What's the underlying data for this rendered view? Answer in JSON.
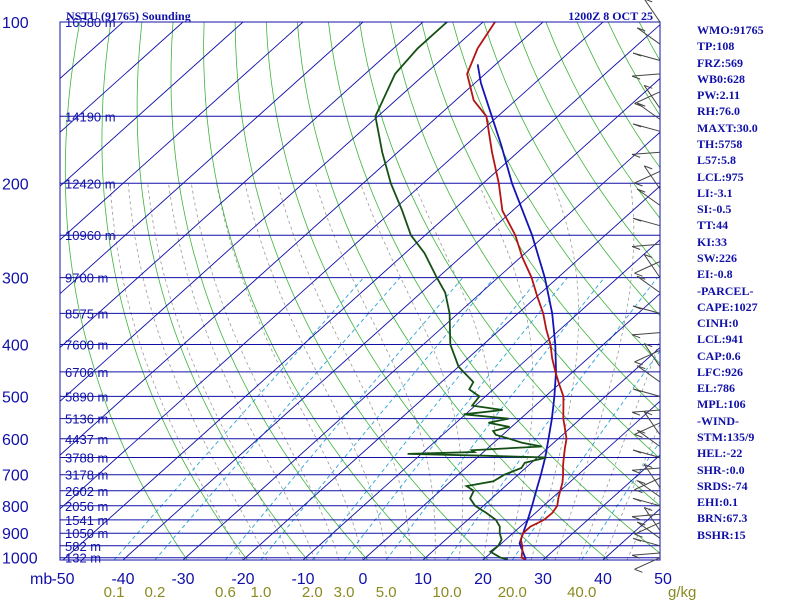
{
  "chart_data": {
    "type": "skew-t",
    "title": "NSTU (91765) Sounding",
    "time": "1200Z  8 OCT 25",
    "pressure_unit": "mb",
    "mixing_ratio_unit": "g/kg",
    "pressure_labels": [
      "100",
      "200",
      "300",
      "400",
      "500",
      "600",
      "700",
      "800",
      "900",
      "1000"
    ],
    "height_levels": [
      {
        "p": 100,
        "label": "16580 m"
      },
      {
        "p": 150,
        "label": "14190 m"
      },
      {
        "p": 200,
        "label": "12420 m"
      },
      {
        "p": 250,
        "label": "10960 m"
      },
      {
        "p": 300,
        "label": "9700 m"
      },
      {
        "p": 350,
        "label": "8575 m"
      },
      {
        "p": 400,
        "label": "7600 m"
      },
      {
        "p": 450,
        "label": "6706 m"
      },
      {
        "p": 500,
        "label": "5890 m"
      },
      {
        "p": 550,
        "label": "5136 m"
      },
      {
        "p": 600,
        "label": "4437 m"
      },
      {
        "p": 650,
        "label": "3788 m"
      },
      {
        "p": 700,
        "label": "3178 m"
      },
      {
        "p": 750,
        "label": "2602 m"
      },
      {
        "p": 800,
        "label": "2056 m"
      },
      {
        "p": 850,
        "label": "1541 m"
      },
      {
        "p": 900,
        "label": "1050 m"
      },
      {
        "p": 950,
        "label": "582 m"
      },
      {
        "p": 1000,
        "label": "132 m"
      }
    ],
    "temp_ticks": [
      "-50",
      "-40",
      "-30",
      "-20",
      "-10",
      "0",
      "10",
      "20",
      "30",
      "40",
      "50"
    ],
    "mixing_ratio_ticks": [
      "0.1",
      "0.2",
      "0.6",
      "1.0",
      "2.0",
      "3.0",
      "5.0",
      "10.0",
      "20.0",
      "40.0"
    ],
    "temperature": [
      [
        1007,
        27.0
      ],
      [
        1000,
        26.0
      ],
      [
        970,
        24.8
      ],
      [
        950,
        23.9
      ],
      [
        925,
        22.5
      ],
      [
        900,
        21.7
      ],
      [
        875,
        21.7
      ],
      [
        850,
        22.7
      ],
      [
        825,
        22.8
      ],
      [
        800,
        22.3
      ],
      [
        775,
        21.1
      ],
      [
        750,
        20.0
      ],
      [
        725,
        18.9
      ],
      [
        700,
        17.5
      ],
      [
        675,
        15.9
      ],
      [
        650,
        14.4
      ],
      [
        625,
        12.9
      ],
      [
        600,
        11.4
      ],
      [
        575,
        9.3
      ],
      [
        550,
        7.1
      ],
      [
        525,
        5.1
      ],
      [
        500,
        3.0
      ],
      [
        475,
        0.1
      ],
      [
        450,
        -2.9
      ],
      [
        425,
        -5.9
      ],
      [
        400,
        -8.8
      ],
      [
        375,
        -12.3
      ],
      [
        350,
        -15.8
      ],
      [
        325,
        -20.0
      ],
      [
        300,
        -24.4
      ],
      [
        275,
        -29.7
      ],
      [
        250,
        -35.0
      ],
      [
        225,
        -41.7
      ],
      [
        200,
        -47.4
      ],
      [
        175,
        -54.3
      ],
      [
        150,
        -61.9
      ],
      [
        140,
        -67.0
      ],
      [
        125,
        -73.0
      ],
      [
        112,
        -76.0
      ],
      [
        100,
        -78.0
      ]
    ],
    "dewpoint": [
      [
        1007,
        24.0
      ],
      [
        1000,
        22.5
      ],
      [
        975,
        19.7
      ],
      [
        950,
        19.9
      ],
      [
        925,
        19.3
      ],
      [
        900,
        17.8
      ],
      [
        875,
        16.6
      ],
      [
        850,
        14.7
      ],
      [
        825,
        11.8
      ],
      [
        800,
        8.6
      ],
      [
        775,
        6.4
      ],
      [
        750,
        5.6
      ],
      [
        735,
        3.5
      ],
      [
        720,
        7.1
      ],
      [
        700,
        7.7
      ],
      [
        680,
        9.3
      ],
      [
        665,
        8.9
      ],
      [
        650,
        11.5
      ],
      [
        645,
        0.5
      ],
      [
        640,
        -12.3
      ],
      [
        635,
        -1.5
      ],
      [
        630,
        -2.3
      ],
      [
        620,
        8.7
      ],
      [
        610,
        4.7
      ],
      [
        600,
        1.9
      ],
      [
        590,
        -1.1
      ],
      [
        580,
        -2.3
      ],
      [
        570,
        -0.3
      ],
      [
        560,
        -4.6
      ],
      [
        550,
        -2.0
      ],
      [
        540,
        -10.3
      ],
      [
        530,
        -4.6
      ],
      [
        520,
        -10.5
      ],
      [
        500,
        -11.0
      ],
      [
        485,
        -14.0
      ],
      [
        470,
        -14.7
      ],
      [
        440,
        -20.0
      ],
      [
        400,
        -25.5
      ],
      [
        350,
        -31.4
      ],
      [
        320,
        -36.0
      ],
      [
        300,
        -40.2
      ],
      [
        270,
        -46.8
      ],
      [
        250,
        -52.4
      ],
      [
        225,
        -58.4
      ],
      [
        200,
        -65.4
      ],
      [
        175,
        -72.6
      ],
      [
        150,
        -80.4
      ],
      [
        125,
        -85.0
      ],
      [
        112,
        -86.0
      ],
      [
        100,
        -86.0
      ]
    ],
    "parcel": [
      [
        1007,
        27.0
      ],
      [
        940,
        23.0
      ],
      [
        900,
        21.7
      ],
      [
        850,
        20.0
      ],
      [
        800,
        18.1
      ],
      [
        750,
        16.0
      ],
      [
        700,
        13.8
      ],
      [
        650,
        11.3
      ],
      [
        600,
        8.4
      ],
      [
        550,
        5.2
      ],
      [
        500,
        1.5
      ],
      [
        450,
        -2.8
      ],
      [
        400,
        -8.0
      ],
      [
        350,
        -14.3
      ],
      [
        300,
        -22.2
      ],
      [
        250,
        -32.2
      ],
      [
        200,
        -45.2
      ],
      [
        170,
        -54.0
      ],
      [
        150,
        -61.0
      ],
      [
        130,
        -69.0
      ],
      [
        120,
        -73.0
      ]
    ],
    "wind_levels_mb": [
      100,
      110,
      118,
      125,
      135,
      145,
      152,
      160,
      175,
      190,
      205,
      220,
      240,
      260,
      280,
      300,
      320,
      350,
      380,
      410,
      440,
      470,
      500,
      530,
      560,
      590,
      620,
      650,
      680,
      710,
      740,
      770,
      800,
      830,
      860,
      890,
      920,
      950,
      980,
      1000
    ],
    "indices": [
      "WMO:91765",
      "TP:108",
      "FRZ:569",
      "WB0:628",
      "PW:2.11",
      "RH:76.0",
      "MAXT:30.0",
      "TH:5758",
      "L57:5.8",
      "LCL:975",
      "LI:-3.1",
      "SI:-0.5",
      "TT:44",
      "KI:33",
      "SW:226",
      "EI:-0.8",
      "-PARCEL-",
      "CAPE:1027",
      "CINH:0",
      "LCL:941",
      "CAP:0.6",
      "LFC:926",
      "EL:786",
      "MPL:106",
      "-WIND-",
      "STM:135/9",
      "HEL:-22",
      "SHR-:0.0",
      "SRDS:-74",
      "EHI:0.1",
      "BRN:67.3",
      "BSHR:15"
    ],
    "colors": {
      "isobar": "#1010a8",
      "isotherm": "#1010a8",
      "dry_adiabat": "#3cb43c",
      "moist_adiabat": "#9a9a9a",
      "mixing_ratio": "#2ea4d8",
      "temperature": "#b41414",
      "dewpoint": "#145014",
      "parcel": "#1414b4",
      "label": "#1010a8",
      "tick_bottom": "#8a8a22",
      "wind": "#444444"
    }
  }
}
